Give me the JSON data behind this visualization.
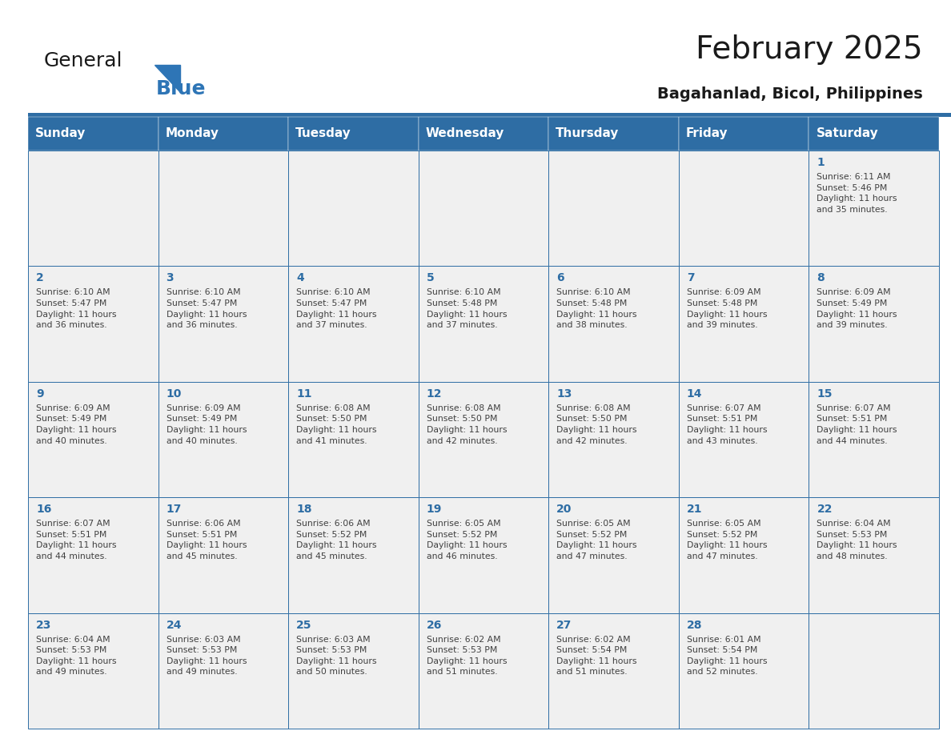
{
  "title": "February 2025",
  "subtitle": "Bagahanlad, Bicol, Philippines",
  "header_bg": "#2E6DA4",
  "header_text_color": "#FFFFFF",
  "cell_bg": "#F0F0F0",
  "day_number_color": "#2E6DA4",
  "text_color": "#404040",
  "border_color": "#2E6DA4",
  "days_of_week": [
    "Sunday",
    "Monday",
    "Tuesday",
    "Wednesday",
    "Thursday",
    "Friday",
    "Saturday"
  ],
  "weeks": [
    [
      {
        "day": null,
        "info": null
      },
      {
        "day": null,
        "info": null
      },
      {
        "day": null,
        "info": null
      },
      {
        "day": null,
        "info": null
      },
      {
        "day": null,
        "info": null
      },
      {
        "day": null,
        "info": null
      },
      {
        "day": 1,
        "info": "Sunrise: 6:11 AM\nSunset: 5:46 PM\nDaylight: 11 hours\nand 35 minutes."
      }
    ],
    [
      {
        "day": 2,
        "info": "Sunrise: 6:10 AM\nSunset: 5:47 PM\nDaylight: 11 hours\nand 36 minutes."
      },
      {
        "day": 3,
        "info": "Sunrise: 6:10 AM\nSunset: 5:47 PM\nDaylight: 11 hours\nand 36 minutes."
      },
      {
        "day": 4,
        "info": "Sunrise: 6:10 AM\nSunset: 5:47 PM\nDaylight: 11 hours\nand 37 minutes."
      },
      {
        "day": 5,
        "info": "Sunrise: 6:10 AM\nSunset: 5:48 PM\nDaylight: 11 hours\nand 37 minutes."
      },
      {
        "day": 6,
        "info": "Sunrise: 6:10 AM\nSunset: 5:48 PM\nDaylight: 11 hours\nand 38 minutes."
      },
      {
        "day": 7,
        "info": "Sunrise: 6:09 AM\nSunset: 5:48 PM\nDaylight: 11 hours\nand 39 minutes."
      },
      {
        "day": 8,
        "info": "Sunrise: 6:09 AM\nSunset: 5:49 PM\nDaylight: 11 hours\nand 39 minutes."
      }
    ],
    [
      {
        "day": 9,
        "info": "Sunrise: 6:09 AM\nSunset: 5:49 PM\nDaylight: 11 hours\nand 40 minutes."
      },
      {
        "day": 10,
        "info": "Sunrise: 6:09 AM\nSunset: 5:49 PM\nDaylight: 11 hours\nand 40 minutes."
      },
      {
        "day": 11,
        "info": "Sunrise: 6:08 AM\nSunset: 5:50 PM\nDaylight: 11 hours\nand 41 minutes."
      },
      {
        "day": 12,
        "info": "Sunrise: 6:08 AM\nSunset: 5:50 PM\nDaylight: 11 hours\nand 42 minutes."
      },
      {
        "day": 13,
        "info": "Sunrise: 6:08 AM\nSunset: 5:50 PM\nDaylight: 11 hours\nand 42 minutes."
      },
      {
        "day": 14,
        "info": "Sunrise: 6:07 AM\nSunset: 5:51 PM\nDaylight: 11 hours\nand 43 minutes."
      },
      {
        "day": 15,
        "info": "Sunrise: 6:07 AM\nSunset: 5:51 PM\nDaylight: 11 hours\nand 44 minutes."
      }
    ],
    [
      {
        "day": 16,
        "info": "Sunrise: 6:07 AM\nSunset: 5:51 PM\nDaylight: 11 hours\nand 44 minutes."
      },
      {
        "day": 17,
        "info": "Sunrise: 6:06 AM\nSunset: 5:51 PM\nDaylight: 11 hours\nand 45 minutes."
      },
      {
        "day": 18,
        "info": "Sunrise: 6:06 AM\nSunset: 5:52 PM\nDaylight: 11 hours\nand 45 minutes."
      },
      {
        "day": 19,
        "info": "Sunrise: 6:05 AM\nSunset: 5:52 PM\nDaylight: 11 hours\nand 46 minutes."
      },
      {
        "day": 20,
        "info": "Sunrise: 6:05 AM\nSunset: 5:52 PM\nDaylight: 11 hours\nand 47 minutes."
      },
      {
        "day": 21,
        "info": "Sunrise: 6:05 AM\nSunset: 5:52 PM\nDaylight: 11 hours\nand 47 minutes."
      },
      {
        "day": 22,
        "info": "Sunrise: 6:04 AM\nSunset: 5:53 PM\nDaylight: 11 hours\nand 48 minutes."
      }
    ],
    [
      {
        "day": 23,
        "info": "Sunrise: 6:04 AM\nSunset: 5:53 PM\nDaylight: 11 hours\nand 49 minutes."
      },
      {
        "day": 24,
        "info": "Sunrise: 6:03 AM\nSunset: 5:53 PM\nDaylight: 11 hours\nand 49 minutes."
      },
      {
        "day": 25,
        "info": "Sunrise: 6:03 AM\nSunset: 5:53 PM\nDaylight: 11 hours\nand 50 minutes."
      },
      {
        "day": 26,
        "info": "Sunrise: 6:02 AM\nSunset: 5:53 PM\nDaylight: 11 hours\nand 51 minutes."
      },
      {
        "day": 27,
        "info": "Sunrise: 6:02 AM\nSunset: 5:54 PM\nDaylight: 11 hours\nand 51 minutes."
      },
      {
        "day": 28,
        "info": "Sunrise: 6:01 AM\nSunset: 5:54 PM\nDaylight: 11 hours\nand 52 minutes."
      },
      {
        "day": null,
        "info": null
      }
    ]
  ],
  "logo_text1": "General",
  "logo_text2": "Blue",
  "logo_color1": "#1a1a1a",
  "logo_color2": "#2E75B6",
  "title_fontsize": 28,
  "subtitle_fontsize": 14,
  "header_fontsize": 11,
  "day_num_fontsize": 10,
  "info_fontsize": 7.8
}
